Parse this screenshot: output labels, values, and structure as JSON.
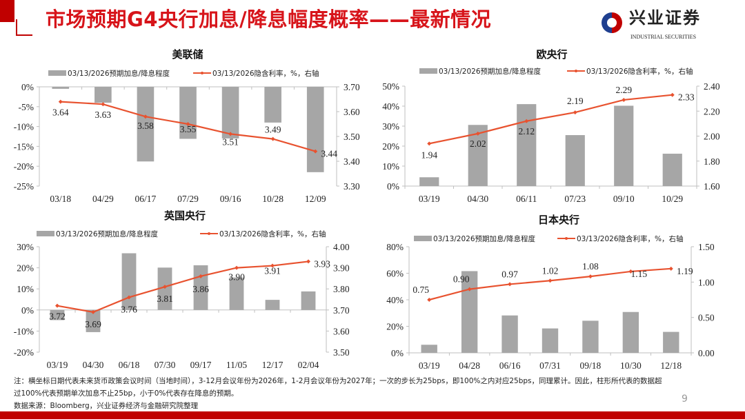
{
  "header": {
    "title": "市场预期G4央行加息/降息幅度概率——最新情况",
    "logo_cn": "兴业证券",
    "logo_en": "INDUSTRIAL SECURITIES"
  },
  "colors": {
    "bar": "#a6a6a6",
    "line": "#e8522f",
    "brand_red": "#c00000",
    "title_red": "#d7141a"
  },
  "chart_data": [
    {
      "type": "bar+line",
      "title": "美联储",
      "legend": [
        "03/13/2026预期加息/降息程度",
        "03/13/2026隐含利率，%，右轴"
      ],
      "categories": [
        "03/18",
        "04/29",
        "06/17",
        "07/29",
        "09/16",
        "10/28",
        "12/09"
      ],
      "series": [
        {
          "name": "03/13/2026预期加息/降息程度",
          "type": "bar",
          "axis": "left",
          "unit": "%",
          "values": [
            -0.5,
            -4.0,
            -18.8,
            -13.1,
            -13.0,
            -9.0,
            -21.5
          ]
        },
        {
          "name": "03/13/2026隐含利率，%，右轴",
          "type": "line",
          "axis": "right",
          "values": [
            3.64,
            3.63,
            3.58,
            3.55,
            3.51,
            3.49,
            3.44
          ],
          "labels": [
            "3.64",
            "3.63",
            "3.58",
            "3.55",
            "3.51",
            "3.49",
            "3.44"
          ]
        }
      ],
      "left_ylim": [
        -25,
        0
      ],
      "left_ticks": [
        "0%",
        "-5%",
        "-10%",
        "-15%",
        "-20%",
        "-25%"
      ],
      "right_ylim": [
        3.3,
        3.7
      ],
      "right_ticks": [
        "3.70",
        "3.60",
        "3.50",
        "3.40",
        "3.30"
      ],
      "legend_position": "top",
      "grid": false
    },
    {
      "type": "bar+line",
      "title": "欧央行",
      "legend": [
        "03/13/2026预期加息/降息程度",
        "03/13/2026隐含利率，%，右轴"
      ],
      "categories": [
        "03/19",
        "04/30",
        "06/11",
        "07/23",
        "09/10",
        "10/29"
      ],
      "series": [
        {
          "name": "03/13/2026预期加息/降息程度",
          "type": "bar",
          "axis": "left",
          "unit": "%",
          "values": [
            4.4,
            30.6,
            41.0,
            25.5,
            40.2,
            16.2
          ]
        },
        {
          "name": "03/13/2026隐含利率，%，右轴",
          "type": "line",
          "axis": "right",
          "values": [
            1.94,
            2.02,
            2.12,
            2.19,
            2.29,
            2.33
          ],
          "labels": [
            "1.94",
            "2.02",
            "2.12",
            "2.19",
            "2.29",
            "2.33"
          ]
        }
      ],
      "left_ylim": [
        0,
        50
      ],
      "left_ticks": [
        "50%",
        "40%",
        "30%",
        "20%",
        "10%",
        "0%"
      ],
      "right_ylim": [
        1.6,
        2.4
      ],
      "right_ticks": [
        "2.40",
        "2.20",
        "2.00",
        "1.80",
        "1.60"
      ],
      "legend_position": "top",
      "grid": false
    },
    {
      "type": "bar+line",
      "title": "英国央行",
      "legend": [
        "03/13/2026预期加息/降息程度",
        "03/13/2026隐含利率，%，右轴"
      ],
      "categories": [
        "03/19",
        "04/30",
        "06/18",
        "07/30",
        "09/17",
        "11/05",
        "12/17",
        "02/04"
      ],
      "series": [
        {
          "name": "03/13/2026预期加息/降息程度",
          "type": "bar",
          "axis": "left",
          "unit": "%",
          "values": [
            -4.8,
            -10.5,
            26.9,
            20.1,
            21.2,
            15.4,
            4.8,
            8.8
          ]
        },
        {
          "name": "03/13/2026隐含利率，%，右轴",
          "type": "line",
          "axis": "right",
          "values": [
            3.72,
            3.69,
            3.76,
            3.81,
            3.86,
            3.9,
            3.91,
            3.93
          ],
          "labels": [
            "3.72",
            "3.69",
            "3.76",
            "3.81",
            "3.86",
            "3.90",
            "3.91",
            "3.93"
          ]
        }
      ],
      "left_ylim": [
        -20,
        30
      ],
      "left_ticks": [
        "30%",
        "20%",
        "10%",
        "0%",
        "-10%",
        "-20%"
      ],
      "right_ylim": [
        3.5,
        4.0
      ],
      "right_ticks": [
        "4.00",
        "3.90",
        "3.80",
        "3.70",
        "3.60",
        "3.50"
      ],
      "legend_position": "top",
      "grid": false
    },
    {
      "type": "bar+line",
      "title": "日本央行",
      "legend": [
        "03/13/2026预期加息/降息程度",
        "03/13/2026隐含利率，%，右轴"
      ],
      "categories": [
        "03/19",
        "04/28",
        "06/16",
        "07/31",
        "09/18",
        "10/30",
        "12/18"
      ],
      "series": [
        {
          "name": "03/13/2026预期加息/降息程度",
          "type": "bar",
          "axis": "left",
          "unit": "%",
          "values": [
            6.1,
            61.6,
            28.2,
            18.4,
            24.2,
            30.8,
            15.8
          ]
        },
        {
          "name": "03/13/2026隐含利率，%，右轴",
          "type": "line",
          "axis": "right",
          "values": [
            0.75,
            0.9,
            0.97,
            1.02,
            1.08,
            1.15,
            1.19
          ],
          "labels": [
            "0.75",
            "0.90",
            "0.97",
            "1.02",
            "1.08",
            "1.15",
            "1.19"
          ]
        }
      ],
      "left_ylim": [
        0,
        80
      ],
      "left_ticks": [
        "80%",
        "60%",
        "40%",
        "20%",
        "0%"
      ],
      "right_ylim": [
        0.0,
        1.5
      ],
      "right_ticks": [
        "1.50",
        "1.00",
        "0.50",
        "0.00"
      ],
      "legend_position": "top",
      "grid": false
    }
  ],
  "notes": {
    "line1": "注：横坐标日期代表未来货币政策会议时间（当地时间），3-12月会议年份为2026年，1-2月会议年份为2027年；一次的步长为25bps，即100%之内对应25bps，同理累计。因此，柱形所代表的数据超",
    "line2": "过100%代表预期单次加息不止25bp，小于0%代表存在降息的预期。",
    "source": "数据来源：Bloomberg，兴业证券经济与金融研究院整理"
  },
  "page_number": "9"
}
